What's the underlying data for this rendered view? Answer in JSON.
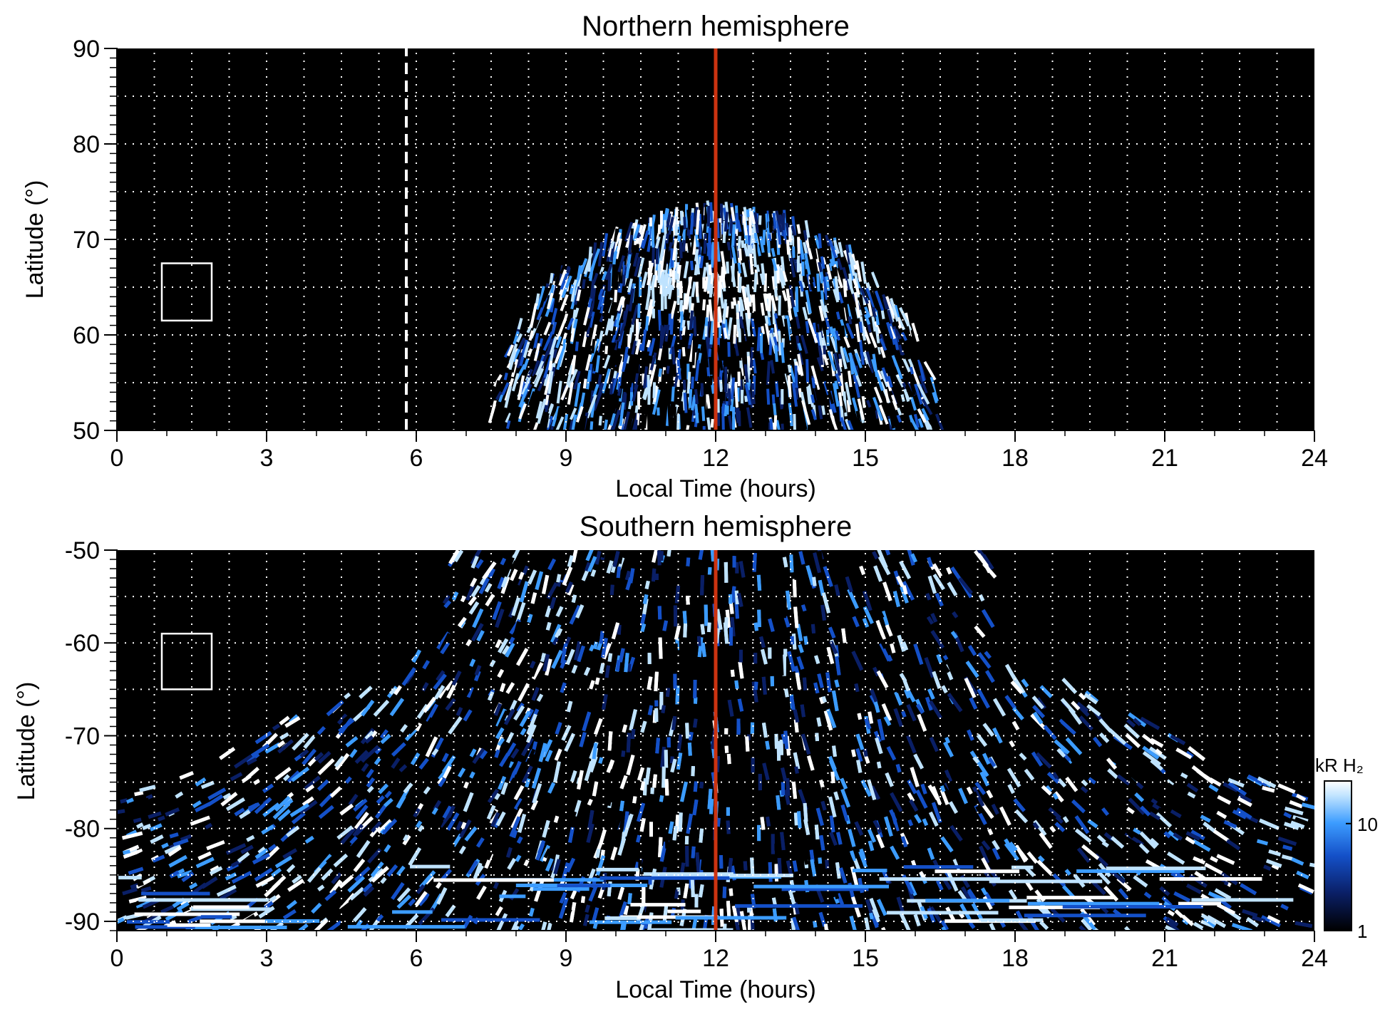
{
  "chart_data": [
    {
      "type": "heatmap",
      "title": "Northern hemisphere",
      "xlabel": "Local Time (hours)",
      "ylabel": "Latitude (°)",
      "xlim": [
        0,
        24
      ],
      "ylim": [
        50,
        90
      ],
      "xticks": [
        "0",
        "3",
        "6",
        "9",
        "12",
        "15",
        "18",
        "21",
        "24"
      ],
      "yticks": [
        "50",
        "60",
        "70",
        "80",
        "90"
      ],
      "grid": true,
      "markers": {
        "solid_line_x": 12,
        "solid_line_color": "#cc3311",
        "dashed_line_x": 5.8
      },
      "box": {
        "x": [
          0.9,
          1.9
        ],
        "y": [
          61.5,
          67.5
        ]
      },
      "emission_region": {
        "lt_range": [
          7.5,
          16.5
        ],
        "lat_range": [
          50,
          73
        ]
      },
      "bright_band": {
        "lt_range": [
          10.5,
          13.5
        ],
        "lat_range": [
          62,
          67
        ]
      }
    },
    {
      "type": "heatmap",
      "title": "Southern hemisphere",
      "xlabel": "Local Time (hours)",
      "ylabel": "Latitude (°)",
      "xlim": [
        0,
        24
      ],
      "ylim": [
        -91,
        -50
      ],
      "xticks": [
        "0",
        "3",
        "6",
        "9",
        "12",
        "15",
        "18",
        "21",
        "24"
      ],
      "yticks": [
        "-50",
        "-60",
        "-70",
        "-80",
        "-90"
      ],
      "grid": true,
      "markers": {
        "solid_line_x": 12,
        "solid_line_color": "#cc3311"
      },
      "box": {
        "x": [
          0.9,
          1.9
        ],
        "y": [
          -65,
          -59
        ]
      },
      "emission_region": {
        "lt_range": [
          0,
          24
        ],
        "lat_range": [
          -91,
          -50
        ]
      },
      "bright_band": {
        "lt_range": [
          8.8,
          11.3
        ],
        "lat_range": [
          -76,
          -73
        ]
      }
    }
  ],
  "colorbar": {
    "label": "kR H₂",
    "ticks": [
      "1",
      "10"
    ],
    "scale": "log",
    "colors": [
      "#000000",
      "#0a1f66",
      "#1450c8",
      "#3c9cff",
      "#bfe3ff",
      "#ffffff"
    ]
  }
}
